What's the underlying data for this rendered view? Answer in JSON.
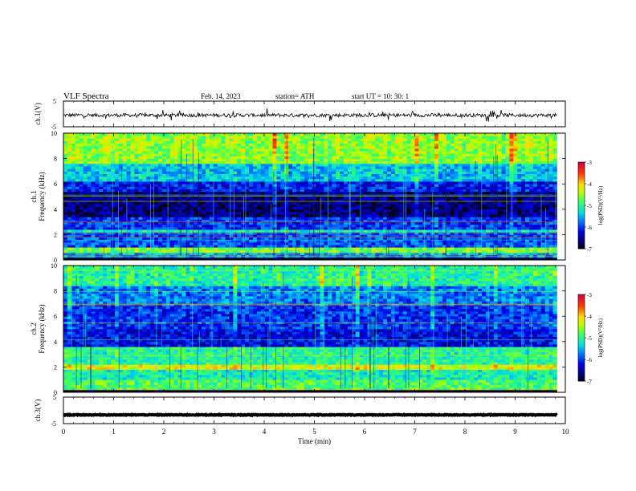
{
  "header": {
    "title": "VLF  Spectra",
    "date": "Feb. 14, 2023",
    "station": "station= ATH",
    "start_ut": "start  UT  =    10: 30: 1"
  },
  "chart_data": [
    {
      "type": "line",
      "name": "ch1-waveform",
      "ylabel": "ch.1(V)",
      "ylim": [
        -5,
        5
      ],
      "ytick_labels": [
        "5",
        "-5"
      ],
      "xlim": [
        0,
        10
      ],
      "baseline": -0.5,
      "noise_amplitude": 0.7,
      "spike_amplitude": 2.2
    },
    {
      "type": "heatmap",
      "name": "ch1-spectrogram",
      "ylabel": "ch.1\nFrequency  (kHz)",
      "ylim": [
        0,
        10
      ],
      "ytick_labels": [
        "0",
        "2",
        "4",
        "6",
        "8",
        "10"
      ],
      "xlim": [
        0,
        9.83
      ],
      "colorbar": {
        "label": "log(PSD)(V²/Hz)",
        "range": [
          -7,
          -3
        ],
        "ticks": [
          "-3",
          "-4",
          "-5",
          "-6",
          "-7"
        ]
      },
      "bands": [
        {
          "freq": [
            0,
            0.2
          ],
          "level": -7
        },
        {
          "freq": [
            0.2,
            0.6
          ],
          "level": -5.6
        },
        {
          "freq": [
            0.6,
            1.0
          ],
          "level": -4.6
        },
        {
          "freq": [
            1.0,
            2.2
          ],
          "level": -5.9
        },
        {
          "freq": [
            2.2,
            2.4
          ],
          "level": -5.1
        },
        {
          "freq": [
            2.4,
            3.4
          ],
          "level": -6.0
        },
        {
          "freq": [
            3.4,
            5.4
          ],
          "level": -6.6
        },
        {
          "freq": [
            5.4,
            6.2
          ],
          "level": -6.1
        },
        {
          "freq": [
            6.2,
            7.6
          ],
          "level": -5.4
        },
        {
          "freq": [
            7.6,
            10
          ],
          "level": -4.5
        }
      ]
    },
    {
      "type": "heatmap",
      "name": "ch2-spectrogram",
      "ylabel": "ch.2\nFrequency  (kHz)",
      "ylim": [
        0,
        10
      ],
      "ytick_labels": [
        "0",
        "2",
        "4",
        "6",
        "8",
        "10"
      ],
      "xlim": [
        0,
        9.83
      ],
      "colorbar": {
        "label": "log(PSD)(V²/Hz)",
        "range": [
          -7,
          -3
        ],
        "ticks": [
          "-3",
          "-4",
          "-5",
          "-6",
          "-7"
        ]
      },
      "bands": [
        {
          "freq": [
            0,
            0.2
          ],
          "level": -7
        },
        {
          "freq": [
            0.2,
            1.0
          ],
          "level": -4.8
        },
        {
          "freq": [
            1.0,
            1.8
          ],
          "level": -5.1
        },
        {
          "freq": [
            1.8,
            2.2
          ],
          "level": -4.2
        },
        {
          "freq": [
            2.2,
            3.6
          ],
          "level": -5.0
        },
        {
          "freq": [
            3.6,
            5.0
          ],
          "level": -6.2
        },
        {
          "freq": [
            5.0,
            7.0
          ],
          "level": -6.0
        },
        {
          "freq": [
            7.0,
            8.5
          ],
          "level": -5.7
        },
        {
          "freq": [
            8.5,
            10
          ],
          "level": -5.0
        }
      ]
    },
    {
      "type": "line",
      "name": "ch3-waveform",
      "ylabel": "ch.3(V)",
      "ylim": [
        -5,
        5
      ],
      "ytick_labels": [
        "5",
        "-5"
      ],
      "xlim": [
        0,
        10
      ],
      "xlabel": "Time  (min)",
      "xtick_labels": [
        "0",
        "1",
        "2",
        "3",
        "4",
        "5",
        "6",
        "7",
        "8",
        "9",
        "10"
      ],
      "baseline": -1.7,
      "noise_amplitude": 0.15
    }
  ]
}
